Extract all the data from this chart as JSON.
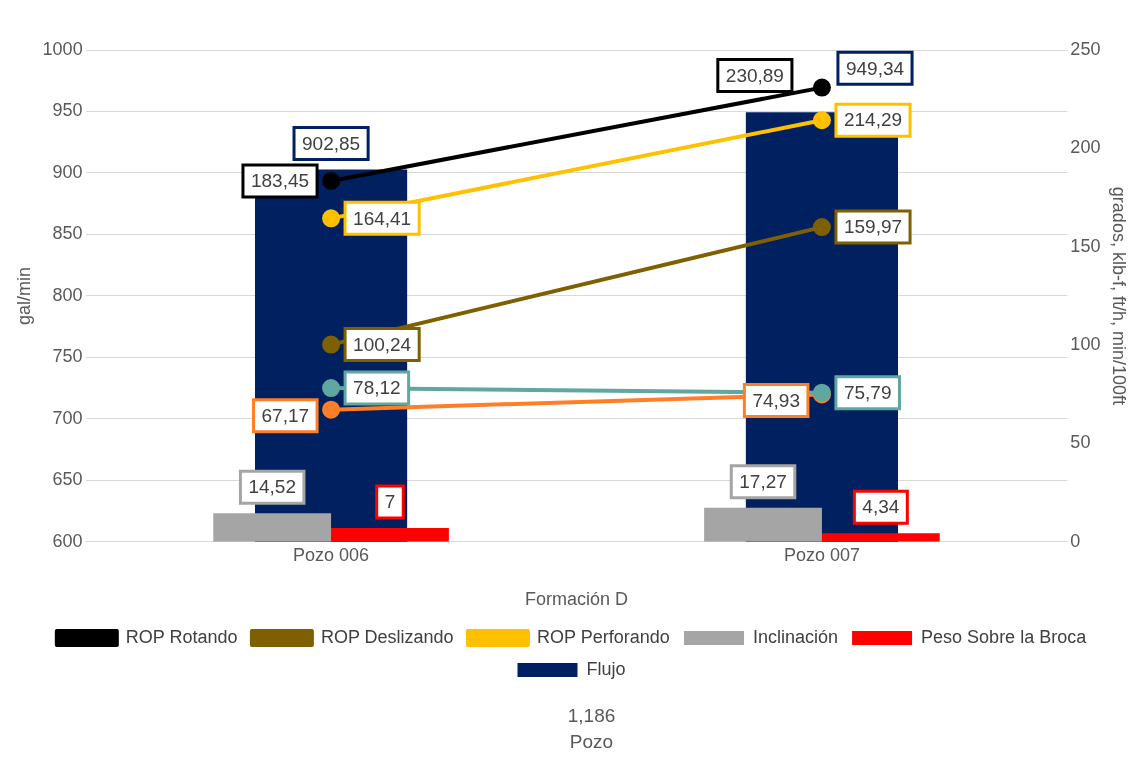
{
  "chart_data": {
    "type": "bar",
    "categories": [
      "Pozo 006",
      "Pozo 007"
    ],
    "xlabel": "Formación D",
    "ylabel": "gal/min",
    "y2label": "grados, klb-f, ft/h, min/100ft",
    "ylim": [
      600,
      1000
    ],
    "yticks": [
      600,
      650,
      700,
      750,
      800,
      850,
      900,
      950,
      1000
    ],
    "y2lim": [
      0,
      250
    ],
    "y2ticks": [
      0,
      50,
      100,
      150,
      200,
      250
    ],
    "grid": "y",
    "legend": "bottom",
    "marker": "circle",
    "annotations": [
      "1,186",
      "Pozo"
    ],
    "series": [
      {
        "name": "Flujo",
        "color": "#002060",
        "values": [
          902.85,
          949.34
        ],
        "value_labels": [
          "902,85",
          "949,34"
        ]
      },
      {
        "name": "Inclinación",
        "axis": "y2",
        "color": "#a5a5a5",
        "values": [
          14.52,
          17.27
        ],
        "value_labels": [
          "14,52",
          "17,27"
        ]
      },
      {
        "name": "Peso Sobre la Broca",
        "axis": "y2",
        "color": "#ff0000",
        "values": [
          7,
          4.34
        ],
        "value_labels": [
          "7",
          "4,34"
        ]
      },
      {
        "name": "ROP Rotando",
        "type": "line",
        "axis": "y2",
        "color": "#000000",
        "values": [
          183.45,
          230.89
        ],
        "value_labels": [
          "183,45",
          "230,89"
        ]
      },
      {
        "name": "ROP Deslizando",
        "type": "line",
        "axis": "y2",
        "color": "#7f6000",
        "values": [
          100.24,
          159.97
        ],
        "value_labels": [
          "100,24",
          "159,97"
        ]
      },
      {
        "name": "ROP Perforando",
        "type": "line",
        "axis": "y2",
        "color": "#ffc000",
        "values": [
          164.41,
          214.29
        ],
        "value_labels": [
          "164,41",
          "214,29"
        ]
      },
      {
        "type": "line",
        "axis": "y2",
        "color": "#5fa8a0",
        "values": [
          78.12,
          75.79
        ],
        "value_labels": [
          "78,12",
          "75,79"
        ]
      },
      {
        "type": "line",
        "axis": "y2",
        "color": "#ff7f27",
        "values": [
          67.17,
          74.93
        ],
        "value_labels": [
          "67,17",
          "74,93"
        ]
      }
    ]
  }
}
